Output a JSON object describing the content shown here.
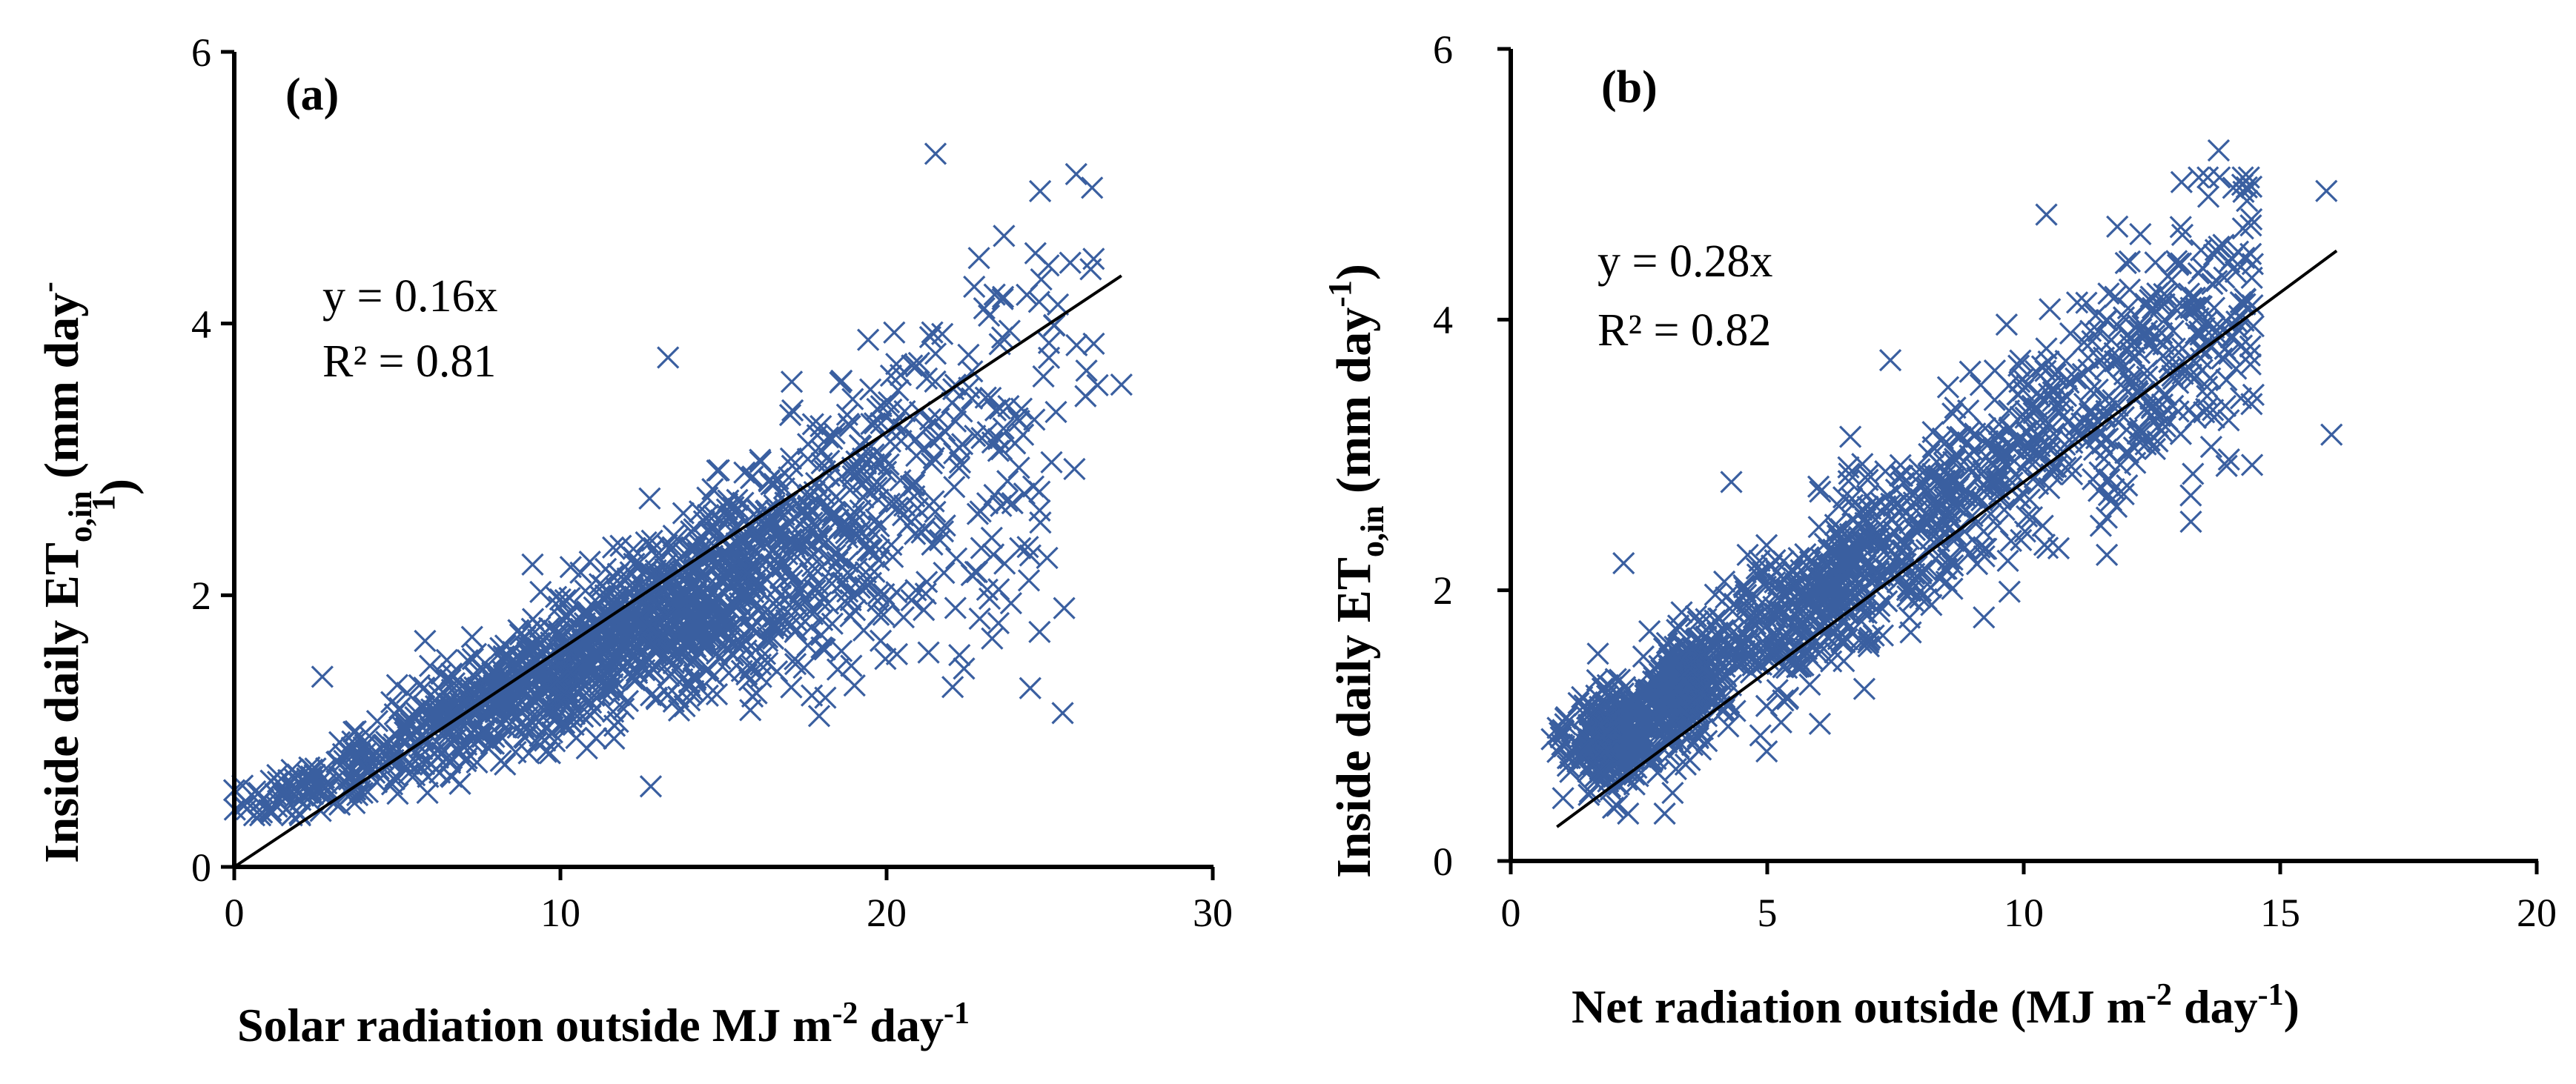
{
  "colors": {
    "marker": "#3a5fa0",
    "axis": "#000000",
    "background": "#ffffff"
  },
  "chart_data": [
    {
      "type": "scatter",
      "panel_label": "(a)",
      "title": "",
      "xlabel": "Solar radiation outside MJ m",
      "xlabel_sup1": "-2",
      "xlabel_mid": " day",
      "xlabel_sup2": "-1",
      "ylabel": "Inside daily ET",
      "ylabel_sub": "o,in",
      "ylabel_tail": " (mm day",
      "ylabel_sup": "-1",
      "ylabel_close": ")",
      "xlim": [
        0,
        30
      ],
      "ylim": [
        0,
        6
      ],
      "xticks": [
        "0",
        "10",
        "20",
        "30"
      ],
      "yticks": [
        "0",
        "2",
        "4",
        "6"
      ],
      "equation": "y = 0.16x",
      "r2": "R² = 0.81",
      "trendline": {
        "slope": 0.16,
        "intercept": 0,
        "x_range": [
          0,
          27.2
        ]
      },
      "marker": "x",
      "n_points": 1650,
      "point_cloud": {
        "x_range": [
          0.0,
          27.2
        ],
        "y_min_at_x0": 0.45,
        "notable_points": [
          {
            "x": 21.5,
            "y": 5.25
          },
          {
            "x": 26.3,
            "y": 5.0
          },
          {
            "x": 13.3,
            "y": 3.75
          },
          {
            "x": 27.2,
            "y": 3.55
          },
          {
            "x": 24.5,
            "y": 2.8
          },
          {
            "x": 2.7,
            "y": 1.4
          },
          {
            "x": 0.3,
            "y": 0.45
          }
        ]
      }
    },
    {
      "type": "scatter",
      "panel_label": "(b)",
      "title": "",
      "xlabel": "Net radiation outside (MJ m",
      "xlabel_sup1": "-2",
      "xlabel_mid": " day",
      "xlabel_sup2": "-1",
      "xlabel_close": ")",
      "ylabel": "Inside daily ET",
      "ylabel_sub": "o,in",
      "ylabel_tail": " (mm day",
      "ylabel_sup": "-1",
      "ylabel_close": ")",
      "xlim": [
        0,
        20
      ],
      "ylim": [
        0,
        6
      ],
      "xticks": [
        "0",
        "5",
        "10",
        "15",
        "20"
      ],
      "yticks": [
        "0",
        "2",
        "4",
        "6"
      ],
      "equation": "y = 0.28x",
      "r2": "R² = 0.82",
      "trendline": {
        "slope": 0.28,
        "intercept": 0,
        "x_range": [
          0.9,
          16.1
        ]
      },
      "marker": "x",
      "n_points": 1650,
      "point_cloud": {
        "x_range": [
          0.8,
          16.1
        ],
        "notable_points": [
          {
            "x": 13.8,
            "y": 5.25
          },
          {
            "x": 15.9,
            "y": 4.95
          },
          {
            "x": 16.0,
            "y": 3.15
          },
          {
            "x": 7.4,
            "y": 3.7
          },
          {
            "x": 2.2,
            "y": 2.2
          },
          {
            "x": 4.3,
            "y": 2.8
          },
          {
            "x": 0.8,
            "y": 0.9
          },
          {
            "x": 3.0,
            "y": 0.35
          }
        ]
      }
    }
  ]
}
